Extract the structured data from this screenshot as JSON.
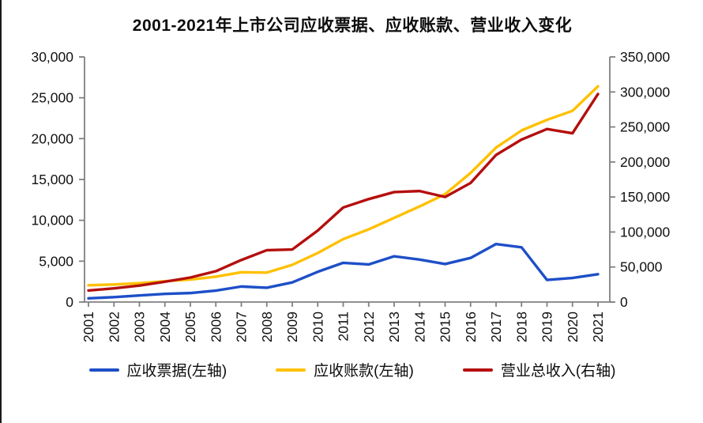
{
  "title": "2001-2021年上市公司应收票据、应收账款、营业收入变化",
  "colors": {
    "blue": "#1d4fc8",
    "gold": "#ffc000",
    "dark_red": "#b40f0e",
    "axis": "#808080",
    "tick_text": "#111111"
  },
  "legend": [
    {
      "label": "应收票据(左轴)",
      "color_key": "blue"
    },
    {
      "label": "应收账款(左轴)",
      "color_key": "gold"
    },
    {
      "label": "营业总收入(右轴)",
      "color_key": "dark_red"
    }
  ],
  "chart_data": {
    "type": "line",
    "title": "2001-2021年上市公司应收票据、应收账款、营业收入变化",
    "x": [
      2001,
      2002,
      2003,
      2004,
      2005,
      2006,
      2007,
      2008,
      2009,
      2010,
      2011,
      2012,
      2013,
      2014,
      2015,
      2016,
      2017,
      2018,
      2019,
      2020,
      2021
    ],
    "series": [
      {
        "name": "应收票据(左轴)",
        "axis": "left",
        "color_key": "blue",
        "values": [
          450,
          600,
          800,
          1000,
          1100,
          1400,
          1900,
          1750,
          2400,
          3700,
          4800,
          4600,
          5600,
          5200,
          4650,
          5400,
          7100,
          6700,
          2700,
          2950,
          3400
        ]
      },
      {
        "name": "应收账款(左轴)",
        "axis": "left",
        "color_key": "gold",
        "values": [
          2050,
          2150,
          2300,
          2550,
          2750,
          3100,
          3650,
          3600,
          4550,
          6000,
          7700,
          8900,
          10300,
          11700,
          13200,
          15800,
          18900,
          21000,
          22300,
          23400,
          26400
        ]
      },
      {
        "name": "营业总收入(右轴)",
        "axis": "right",
        "color_key": "dark_red",
        "values": [
          16500,
          19500,
          23500,
          29000,
          35000,
          44000,
          60000,
          74000,
          75000,
          102000,
          135000,
          147000,
          157000,
          158500,
          150000,
          170000,
          210000,
          232000,
          247000,
          241000,
          297000
        ]
      }
    ],
    "left_axis": {
      "min": 0,
      "max": 30000,
      "step": 5000,
      "tick_labels": [
        "0",
        "5,000",
        "10,000",
        "15,000",
        "20,000",
        "25,000",
        "30,000"
      ]
    },
    "right_axis": {
      "min": 0,
      "max": 350000,
      "step": 50000,
      "tick_labels": [
        "0",
        "50,000",
        "100,000",
        "150,000",
        "200,000",
        "250,000",
        "300,000",
        "350,000"
      ]
    },
    "grid": false,
    "legend_position": "bottom"
  }
}
